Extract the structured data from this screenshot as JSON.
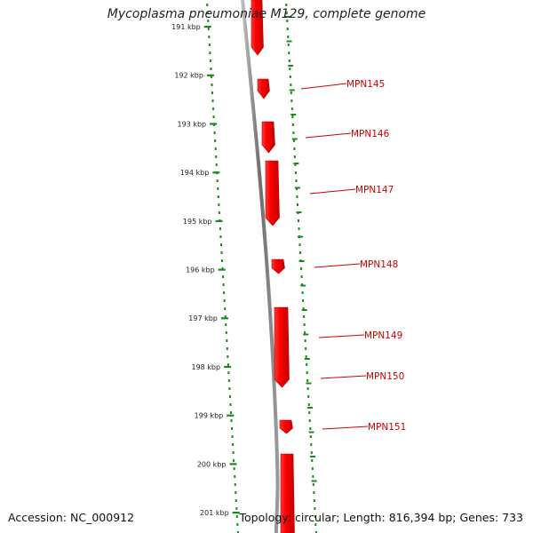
{
  "title": "Mycoplasma pneumoniae M129, complete genome",
  "accession_text": "Accession: NC_000912",
  "topology_text": "Topology: circular; Length: 816,394 bp; Genes: 733",
  "colors": {
    "backbone": "#7a7a7a",
    "gene": "#ff0000",
    "gene_label": "#cc0000",
    "ticks": "#1a8a1a"
  },
  "scale_labels": [
    "191 kbp",
    "192 kbp",
    "193 kbp",
    "194 kbp",
    "195 kbp",
    "196 kbp",
    "197 kbp",
    "198 kbp",
    "199 kbp",
    "200 kbp",
    "201 kbp"
  ],
  "genes": [
    {
      "label": ""
    },
    {
      "label": "MPN145"
    },
    {
      "label": "MPN146"
    },
    {
      "label": "MPN147"
    },
    {
      "label": "MPN148"
    },
    {
      "label": "MPN149"
    },
    {
      "label": "MPN150"
    },
    {
      "label": "MPN151"
    },
    {
      "label": ""
    }
  ]
}
